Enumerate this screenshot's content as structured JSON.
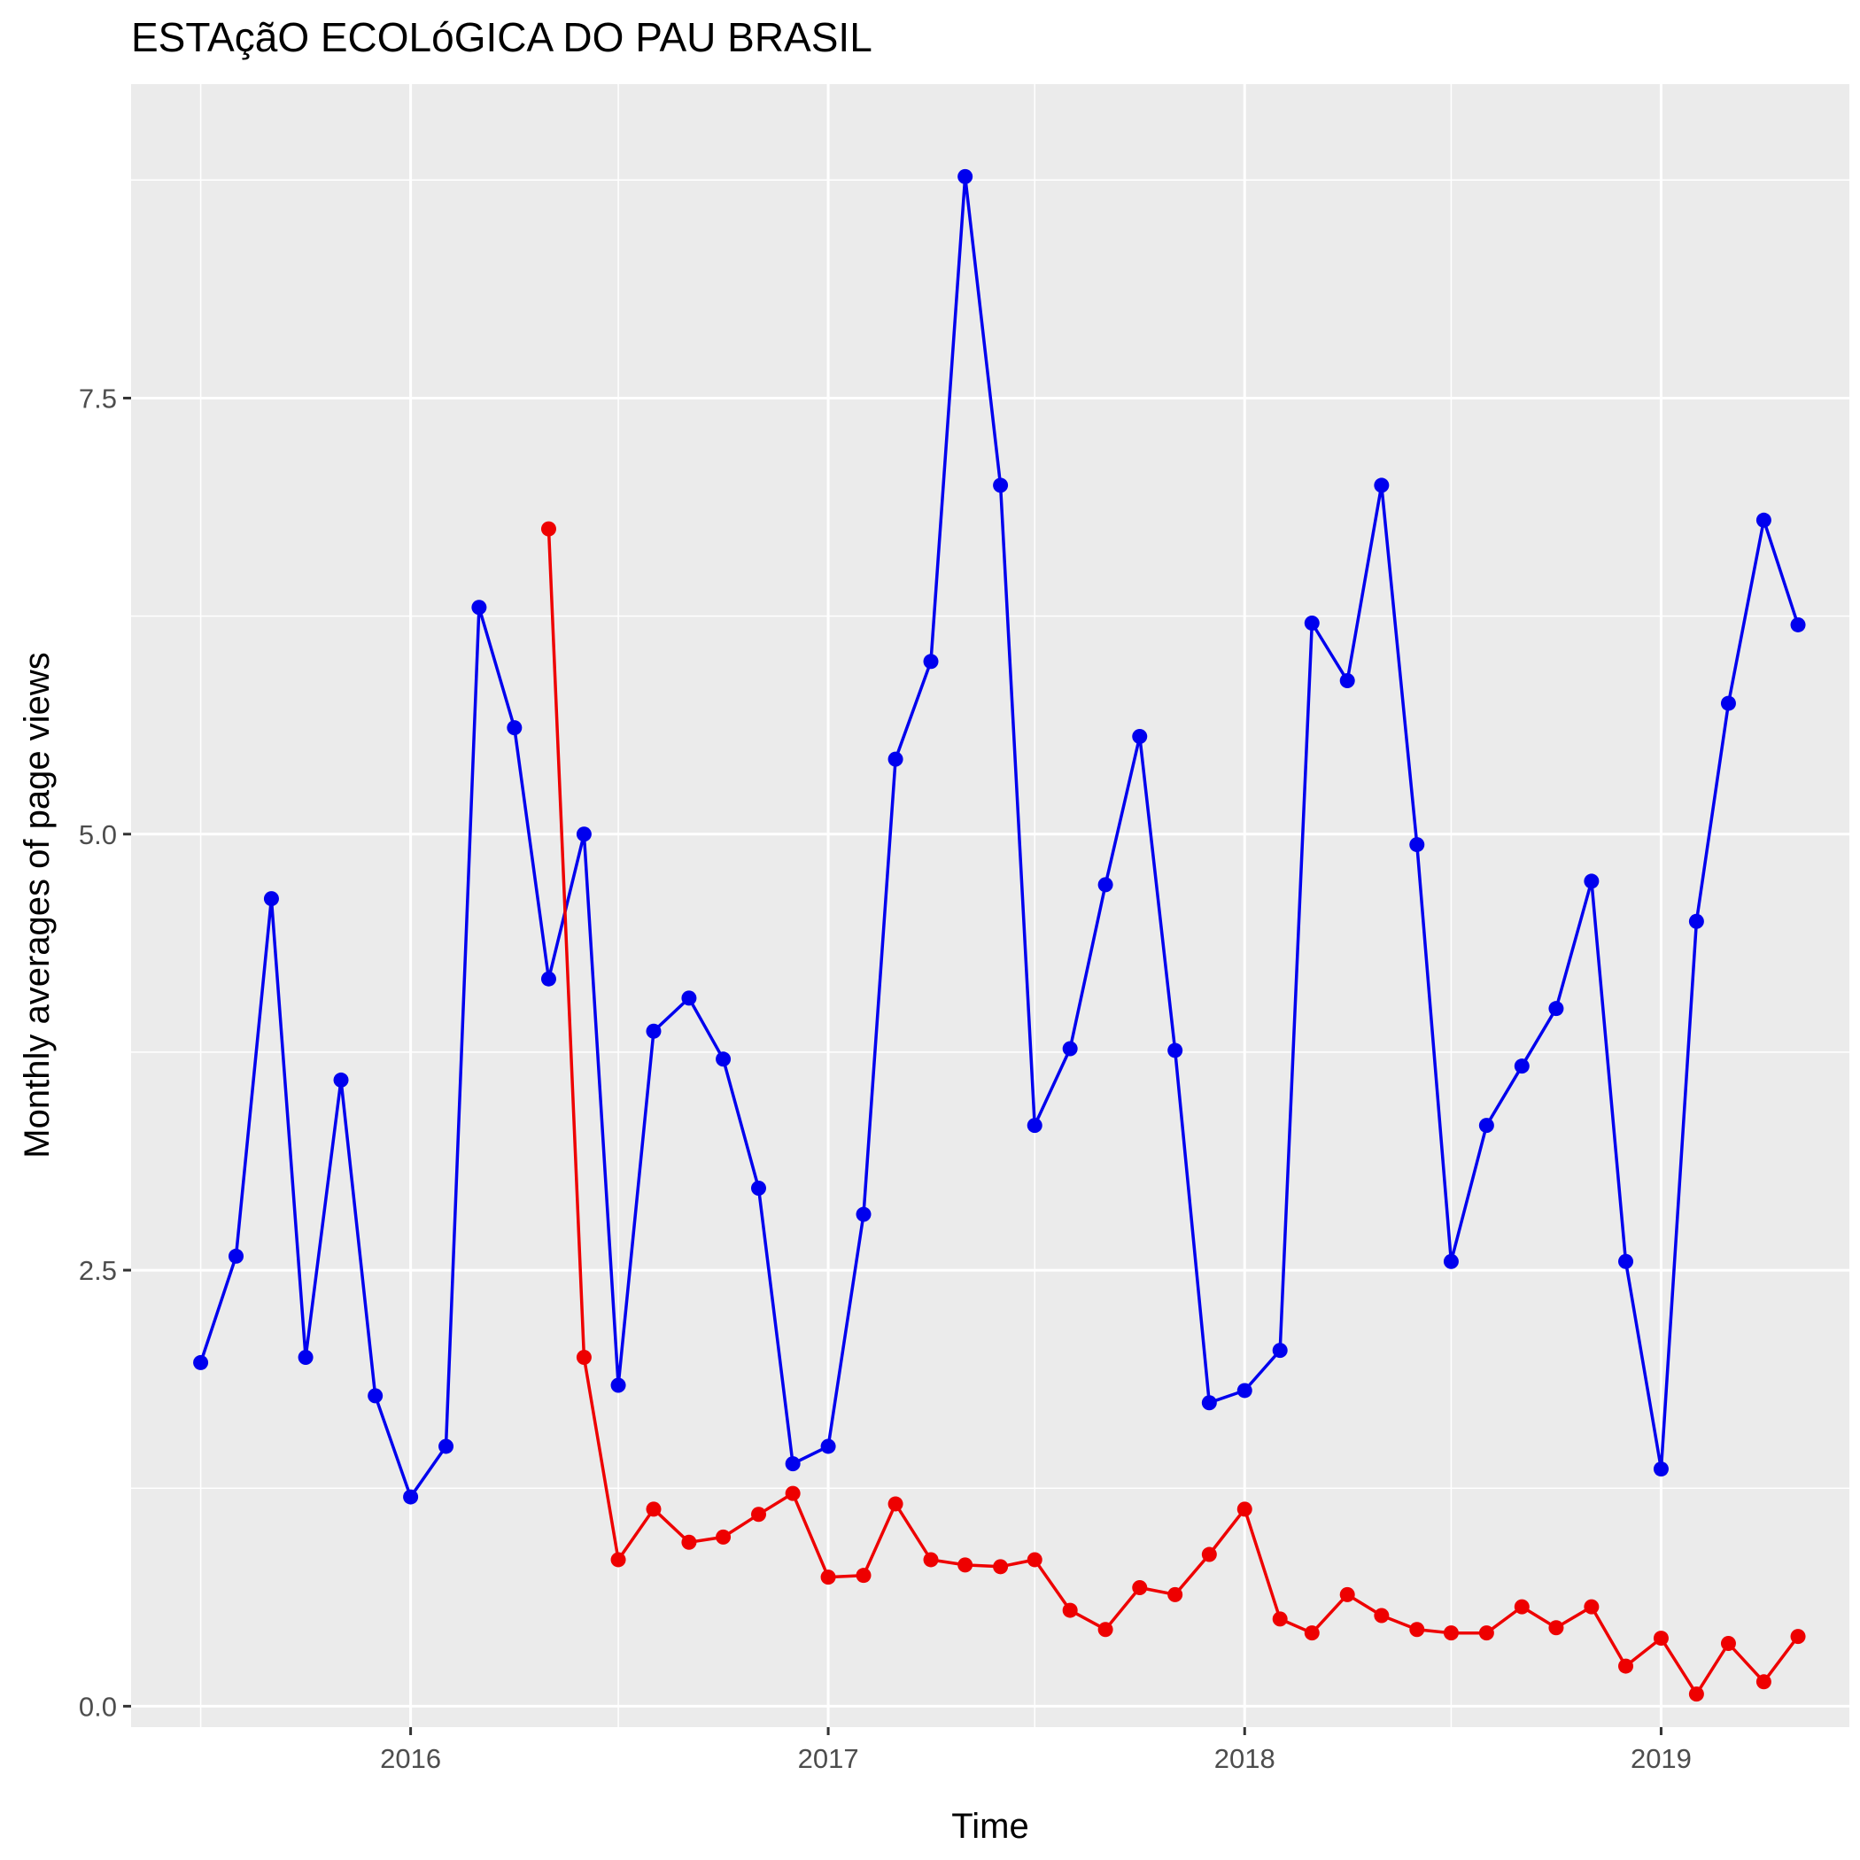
{
  "chart_data": {
    "type": "line",
    "title": "ESTAçãO ECOLóGICA DO PAU BRASIL",
    "xlabel": "Time",
    "ylabel": "Monthly averages of page views",
    "x_ticks": [
      "2016",
      "2017",
      "2018",
      "2019"
    ],
    "y_ticks": [
      "0.0",
      "2.5",
      "5.0",
      "7.5"
    ],
    "xlim": [
      "2015-05-01",
      "2019-06-15"
    ],
    "ylim": [
      -0.12,
      9.3
    ],
    "grid": true,
    "legend": "none",
    "series": [
      {
        "color": "#0000ee",
        "x": [
          "2015-07",
          "2015-08",
          "2015-09",
          "2015-10",
          "2015-11",
          "2015-12",
          "2016-01",
          "2016-02",
          "2016-03",
          "2016-04",
          "2016-05",
          "2016-06",
          "2016-07",
          "2016-08",
          "2016-09",
          "2016-10",
          "2016-11",
          "2016-12",
          "2017-01",
          "2017-02",
          "2017-03",
          "2017-04",
          "2017-05",
          "2017-06",
          "2017-07",
          "2017-08",
          "2017-09",
          "2017-10",
          "2017-11",
          "2017-12",
          "2018-01",
          "2018-02",
          "2018-03",
          "2018-04",
          "2018-05",
          "2018-06",
          "2018-07",
          "2018-08",
          "2018-09",
          "2018-10",
          "2018-11",
          "2018-12",
          "2019-01",
          "2019-02",
          "2019-03",
          "2019-04",
          "2019-05"
        ],
        "values": [
          1.97,
          2.58,
          4.63,
          2.0,
          3.59,
          1.78,
          1.2,
          1.49,
          6.3,
          5.61,
          4.17,
          5.0,
          1.84,
          3.87,
          4.06,
          3.71,
          2.97,
          1.39,
          1.49,
          2.82,
          5.43,
          5.99,
          8.77,
          7.0,
          3.33,
          3.77,
          4.71,
          5.56,
          3.76,
          1.74,
          1.81,
          2.04,
          6.21,
          5.88,
          7.0,
          4.94,
          2.55,
          3.33,
          3.67,
          4.0,
          4.73,
          2.55,
          1.36,
          4.5,
          5.75,
          6.8,
          6.2
        ]
      },
      {
        "color": "#ee0000",
        "x": [
          "2016-05",
          "2016-06",
          "2016-07",
          "2016-08",
          "2016-09",
          "2016-10",
          "2016-11",
          "2016-12",
          "2017-01",
          "2017-02",
          "2017-03",
          "2017-04",
          "2017-05",
          "2017-06",
          "2017-07",
          "2017-08",
          "2017-09",
          "2017-10",
          "2017-11",
          "2017-12",
          "2018-01",
          "2018-02",
          "2018-03",
          "2018-04",
          "2018-05",
          "2018-06",
          "2018-07",
          "2018-08",
          "2018-09",
          "2018-10",
          "2018-11",
          "2018-12",
          "2019-01",
          "2019-02",
          "2019-03",
          "2019-04",
          "2019-05"
        ],
        "values": [
          6.75,
          2.0,
          0.84,
          1.13,
          0.94,
          0.97,
          1.1,
          1.22,
          0.74,
          0.75,
          1.16,
          0.84,
          0.81,
          0.8,
          0.84,
          0.55,
          0.44,
          0.68,
          0.64,
          0.87,
          1.13,
          0.5,
          0.42,
          0.64,
          0.52,
          0.44,
          0.42,
          0.42,
          0.57,
          0.45,
          0.57,
          0.23,
          0.39,
          0.07,
          0.36,
          0.14,
          0.4
        ]
      }
    ]
  }
}
